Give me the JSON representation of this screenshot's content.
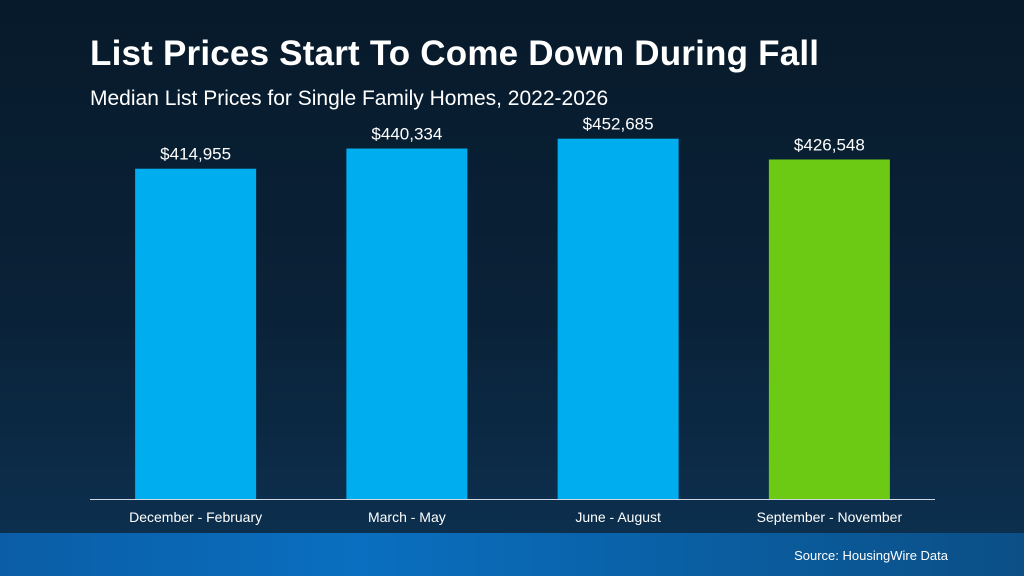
{
  "title": "List Prices Start To Come Down During Fall",
  "subtitle": "Median List Prices for Single Family Homes, 2022-2026",
  "source": "Source: HousingWire Data",
  "colors": {
    "bar_default": "#00adee",
    "bar_highlight": "#6cc914",
    "axis": "#cfd8e0"
  },
  "chart_data": {
    "type": "bar",
    "categories": [
      "December - February",
      "March - May",
      "June - August",
      "September - November"
    ],
    "values": [
      414955,
      440334,
      452685,
      426548
    ],
    "value_labels": [
      "$414,955",
      "$440,334",
      "$452,685",
      "$426,548"
    ],
    "highlight_index": 3,
    "title": "List Prices Start To Come Down During Fall",
    "subtitle": "Median List Prices for Single Family Homes, 2022-2026",
    "xlabel": "",
    "ylabel": "",
    "ylim": [
      0,
      495000
    ],
    "grid": false,
    "legend": "none"
  }
}
